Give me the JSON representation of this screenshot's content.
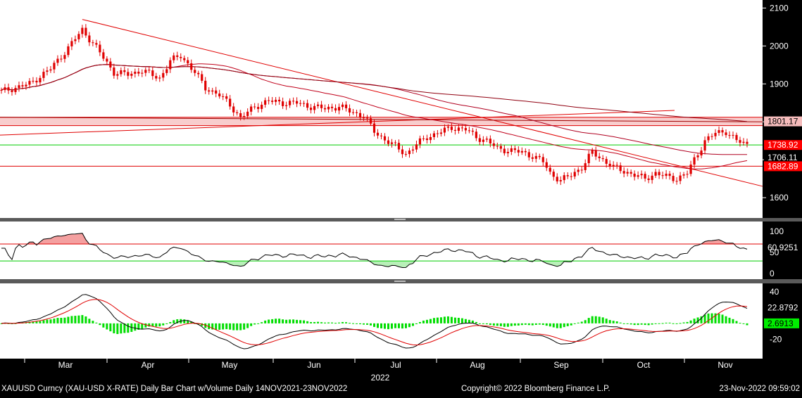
{
  "footer": {
    "left": "XAUUSD Curncy (XAU-USD X-RATE) Daily Bar Chart w/Volume  Daily 14NOV2021-23NOV2022",
    "center": "Copyright© 2022 Bloomberg Finance L.P.",
    "right": "23-Nov-2022 09:59:02"
  },
  "colors": {
    "background": "#ffffff",
    "candle": "#e00000",
    "trendline": "#e00000",
    "support": "#00cc00",
    "rsi_line": "#000000",
    "macd_signal": "#e00000",
    "hist": "#00dd00",
    "axis_bg": "#000000",
    "axis_text": "#ffffff"
  },
  "chart_data": [
    {
      "type": "candlestick",
      "panel": "price",
      "ylim": [
        1565,
        2110
      ],
      "yticks": [
        1600,
        1700,
        1800,
        1900,
        2000,
        2100
      ],
      "x_labels": [
        "Mar",
        "Apr",
        "May",
        "Jun",
        "Jul",
        "Aug",
        "Sep",
        "Oct",
        "Nov"
      ],
      "year_label": "2022",
      "close_path": [
        [
          0,
          1880
        ],
        [
          8,
          1900
        ],
        [
          14,
          1940
        ],
        [
          19,
          1995
        ],
        [
          23,
          2043
        ],
        [
          27,
          1995
        ],
        [
          32,
          1930
        ],
        [
          36,
          1925
        ],
        [
          40,
          1935
        ],
        [
          45,
          1915
        ],
        [
          48,
          1960
        ],
        [
          51,
          1975
        ],
        [
          55,
          1930
        ],
        [
          58,
          1890
        ],
        [
          62,
          1870
        ],
        [
          65,
          1845
        ],
        [
          68,
          1810
        ],
        [
          72,
          1840
        ],
        [
          76,
          1855
        ],
        [
          80,
          1850
        ],
        [
          84,
          1850
        ],
        [
          88,
          1840
        ],
        [
          92,
          1835
        ],
        [
          96,
          1840
        ],
        [
          100,
          1825
        ],
        [
          103,
          1815
        ],
        [
          106,
          1775
        ],
        [
          108,
          1760
        ],
        [
          112,
          1735
        ],
        [
          115,
          1715
        ],
        [
          118,
          1740
        ],
        [
          121,
          1760
        ],
        [
          124,
          1770
        ],
        [
          128,
          1785
        ],
        [
          132,
          1780
        ],
        [
          135,
          1760
        ],
        [
          138,
          1750
        ],
        [
          141,
          1730
        ],
        [
          144,
          1725
        ],
        [
          148,
          1720
        ],
        [
          151,
          1710
        ],
        [
          154,
          1695
        ],
        [
          156,
          1665
        ],
        [
          159,
          1645
        ],
        [
          162,
          1660
        ],
        [
          165,
          1680
        ],
        [
          168,
          1720
        ],
        [
          171,
          1700
        ],
        [
          174,
          1680
        ],
        [
          177,
          1670
        ],
        [
          180,
          1660
        ],
        [
          183,
          1650
        ],
        [
          186,
          1665
        ],
        [
          189,
          1655
        ],
        [
          192,
          1650
        ],
        [
          195,
          1665
        ],
        [
          197,
          1700
        ],
        [
          200,
          1750
        ],
        [
          203,
          1770
        ],
        [
          206,
          1775
        ],
        [
          209,
          1750
        ],
        [
          212,
          1740
        ]
      ],
      "last_price": "1738.92",
      "level_labels": [
        "1801.17",
        "1738.92",
        "1706.11",
        "1682.89"
      ],
      "horizontal_levels": {
        "resistance_band": [
          1790,
          1812
        ],
        "support_green": 1739,
        "support_red": 1683
      }
    },
    {
      "type": "line",
      "panel": "rsi",
      "ylim": [
        -8,
        118
      ],
      "yticks": [
        0,
        50,
        100
      ],
      "last_value": "60.9251",
      "overbought": 70,
      "oversold": 30
    },
    {
      "type": "macd",
      "panel": "macd",
      "ylim": [
        -42,
        48
      ],
      "yticks": [
        -20,
        40
      ],
      "last_macd": "22.8792",
      "last_hist": "2.6913"
    }
  ]
}
